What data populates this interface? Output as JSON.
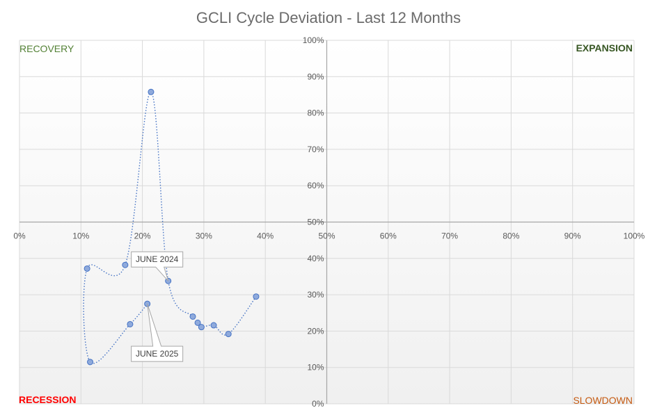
{
  "chart_data": {
    "type": "scatter",
    "title": "GCLI Cycle Deviation - Last 12 Months",
    "xlabel": "",
    "ylabel": "",
    "xlim": [
      0,
      100
    ],
    "ylim": [
      0,
      100
    ],
    "x_ticks_left": [
      "0%",
      "10%",
      "20%",
      "30%",
      "40%"
    ],
    "x_ticks_right": [
      "50%",
      "60%",
      "70%",
      "80%",
      "90%",
      "100%"
    ],
    "y_ticks_upper": [
      "50%",
      "60%",
      "70%",
      "80%",
      "90%",
      "100%"
    ],
    "y_ticks_lower": [
      "0%",
      "10%",
      "20%",
      "30%",
      "40%"
    ],
    "grid": true,
    "line_style": "dotted smooth",
    "series": [
      {
        "x": [
          38.5,
          34.0,
          31.6,
          29.6,
          29.0,
          28.2,
          24.2,
          21.4,
          17.2,
          11.0,
          11.5,
          18.0,
          20.8
        ],
        "y": [
          29.5,
          19.2,
          21.6,
          21.1,
          22.3,
          24.0,
          33.8,
          85.8,
          38.2,
          37.2,
          11.5,
          21.9,
          27.5
        ]
      }
    ],
    "annotations": [
      {
        "text": "JUNE 2024",
        "x": 24.2,
        "y": 33.8
      },
      {
        "text": "JUNE 2025",
        "x": 20.8,
        "y": 27.5
      }
    ],
    "quadrant_labels": {
      "top_left": "RECOVERY",
      "top_right": "EXPANSION",
      "bottom_left": "RECESSION",
      "bottom_right": "SLOWDOWN"
    },
    "colors": {
      "recovery": "#538135",
      "expansion": "#375623",
      "recession": "#ff0000",
      "slowdown": "#c55a11",
      "series": "#4472c4",
      "marker_fill": "#8faadc"
    }
  }
}
